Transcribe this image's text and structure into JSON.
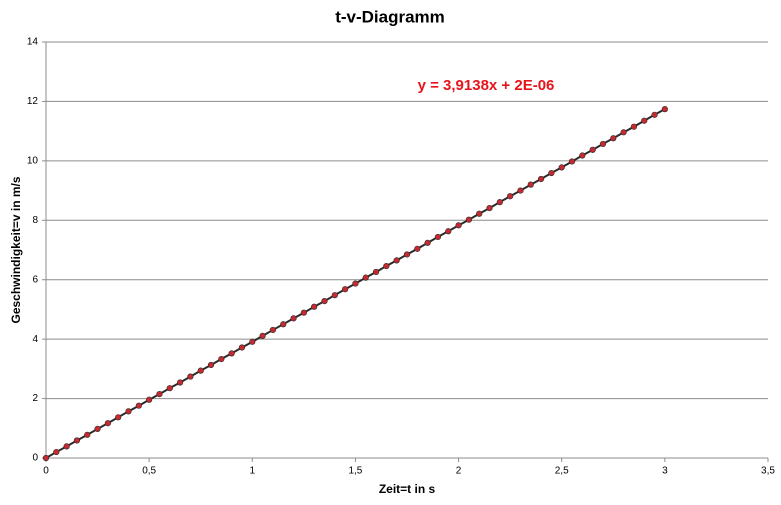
{
  "chart_data": {
    "type": "scatter",
    "title": "t-v-Diagramm",
    "x_label": "Zeit=t in s",
    "y_label": "Geschwindigkeit=v  in m/s",
    "annotation": {
      "text": "y = 3,9138x  + 2E-06",
      "color": "#e8141c"
    },
    "x": [
      0,
      0.05,
      0.1,
      0.15,
      0.2,
      0.25,
      0.3,
      0.35,
      0.4,
      0.45,
      0.5,
      0.55,
      0.6,
      0.65,
      0.7,
      0.75,
      0.8,
      0.85,
      0.9,
      0.95,
      1,
      1.05,
      1.1,
      1.15,
      1.2,
      1.25,
      1.3,
      1.35,
      1.4,
      1.45,
      1.5,
      1.55,
      1.6,
      1.65,
      1.7,
      1.75,
      1.8,
      1.85,
      1.9,
      1.95,
      2,
      2.05,
      2.1,
      2.15,
      2.2,
      2.25,
      2.3,
      2.35,
      2.4,
      2.45,
      2.5,
      2.55,
      2.6,
      2.65,
      2.7,
      2.75,
      2.8,
      2.85,
      2.9,
      2.95,
      3
    ],
    "series": [
      {
        "color": "#c42a30",
        "line_color": "#2b2b2b",
        "values": [
          0,
          0.2,
          0.39,
          0.59,
          0.78,
          0.98,
          1.17,
          1.37,
          1.57,
          1.76,
          1.96,
          2.15,
          2.35,
          2.54,
          2.74,
          2.94,
          3.13,
          3.33,
          3.52,
          3.72,
          3.91,
          4.11,
          4.31,
          4.5,
          4.7,
          4.89,
          5.09,
          5.28,
          5.48,
          5.68,
          5.87,
          6.07,
          6.26,
          6.46,
          6.65,
          6.85,
          7.04,
          7.24,
          7.44,
          7.63,
          7.83,
          8.02,
          8.22,
          8.41,
          8.61,
          8.81,
          9,
          9.2,
          9.39,
          9.59,
          9.78,
          9.98,
          10.18,
          10.37,
          10.57,
          10.76,
          10.96,
          11.15,
          11.35,
          11.55,
          11.74
        ]
      }
    ],
    "xlim": [
      0,
      3.5
    ],
    "xticks": [
      0,
      {
        "value": 0.5,
        "label": "0,5"
      },
      1,
      {
        "value": 1.5,
        "label": "1,5"
      },
      2,
      {
        "value": 2.5,
        "label": "2,5"
      },
      3,
      {
        "value": 3.5,
        "label": "3,5"
      }
    ],
    "ylim": [
      0,
      14
    ],
    "yticks": [
      0,
      2,
      4,
      6,
      8,
      10,
      12,
      14
    ],
    "grid": true
  }
}
